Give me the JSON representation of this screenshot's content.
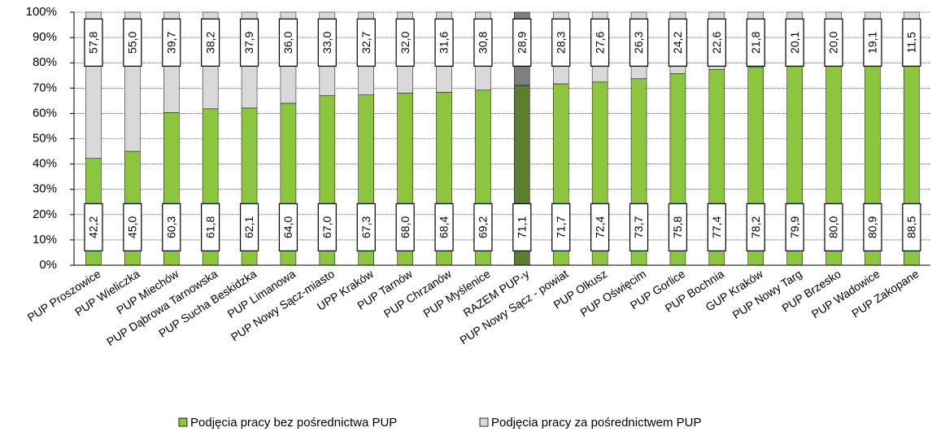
{
  "chart_data": {
    "type": "stacked_bar",
    "categories": [
      "PUP Proszowice",
      "PUP Wieliczka",
      "PUP Miechów",
      "PUP Dąbrowa Tarnowska",
      "PUP Sucha Beskidzka",
      "PUP Limanowa",
      "PUP Nowy Sącz-miasto",
      "UPP Kraków",
      "PUP Tarnów",
      "PUP Chrzanów",
      "PUP Myślenice",
      "RAZEM PUP-y",
      "PUP Nowy Sącz - powiat",
      "PUP Olkusz",
      "PUP Oświęcim",
      "PUP Gorlice",
      "PUP Bochnia",
      "GUP Kraków",
      "PUP Nowy Targ",
      "PUP Brzesko",
      "PUP Wadowice",
      "PUP Zakopane"
    ],
    "series": [
      {
        "name": "Podjęcia pracy bez pośrednictwa PUP",
        "color": "#8cc63f",
        "colors": [
          "#8cc63f",
          "#8cc63f",
          "#8cc63f",
          "#8cc63f",
          "#8cc63f",
          "#8cc63f",
          "#8cc63f",
          "#8cc63f",
          "#8cc63f",
          "#8cc63f",
          "#8cc63f",
          "#5b7f2e",
          "#8cc63f",
          "#8cc63f",
          "#8cc63f",
          "#8cc63f",
          "#8cc63f",
          "#8cc63f",
          "#8cc63f",
          "#8cc63f",
          "#8cc63f",
          "#8cc63f"
        ],
        "values": [
          42.2,
          45.0,
          60.3,
          61.8,
          62.1,
          64.0,
          67.0,
          67.3,
          68.0,
          68.4,
          69.2,
          71.1,
          71.7,
          72.4,
          73.7,
          75.8,
          77.4,
          78.2,
          79.9,
          80.0,
          80.9,
          88.5
        ],
        "value_labels": [
          "42,2",
          "45,0",
          "60,3",
          "61,8",
          "62,1",
          "64,0",
          "67,0",
          "67,3",
          "68,0",
          "68,4",
          "69,2",
          "71,1",
          "71,7",
          "72,4",
          "73,7",
          "75,8",
          "77,4",
          "78,2",
          "79,9",
          "80,0",
          "80,9",
          "88,5"
        ]
      },
      {
        "name": "Podjęcia pracy za pośrednictwem PUP",
        "color": "#d9d9d9",
        "colors": [
          "#d9d9d9",
          "#d9d9d9",
          "#d9d9d9",
          "#d9d9d9",
          "#d9d9d9",
          "#d9d9d9",
          "#d9d9d9",
          "#d9d9d9",
          "#d9d9d9",
          "#d9d9d9",
          "#d9d9d9",
          "#7f7f7f",
          "#d9d9d9",
          "#d9d9d9",
          "#d9d9d9",
          "#d9d9d9",
          "#d9d9d9",
          "#d9d9d9",
          "#d9d9d9",
          "#d9d9d9",
          "#d9d9d9",
          "#d9d9d9"
        ],
        "values": [
          57.8,
          55.0,
          39.7,
          38.2,
          37.9,
          36.0,
          33.0,
          32.7,
          32.0,
          31.6,
          30.8,
          28.9,
          28.3,
          27.6,
          26.3,
          24.2,
          22.6,
          21.8,
          20.1,
          20.0,
          19.1,
          11.5
        ],
        "value_labels": [
          "57,8",
          "55,0",
          "39,7",
          "38,2",
          "37,9",
          "36,0",
          "33,0",
          "32,7",
          "32,0",
          "31,6",
          "30,8",
          "28,9",
          "28,3",
          "27,6",
          "26,3",
          "24,2",
          "22,6",
          "21,8",
          "20,1",
          "20,0",
          "19,1",
          "11,5"
        ]
      }
    ],
    "ylim": [
      0,
      100
    ],
    "yticks": [
      {
        "value": 0,
        "label": "0%"
      },
      {
        "value": 10,
        "label": "10%"
      },
      {
        "value": 20,
        "label": "20%"
      },
      {
        "value": 30,
        "label": "30%"
      },
      {
        "value": 40,
        "label": "40%"
      },
      {
        "value": 50,
        "label": "50%"
      },
      {
        "value": 60,
        "label": "60%"
      },
      {
        "value": 70,
        "label": "70%"
      },
      {
        "value": 80,
        "label": "80%"
      },
      {
        "value": 90,
        "label": "90%"
      },
      {
        "value": 100,
        "label": "100%"
      }
    ],
    "grid": true,
    "legend": "bottom"
  }
}
